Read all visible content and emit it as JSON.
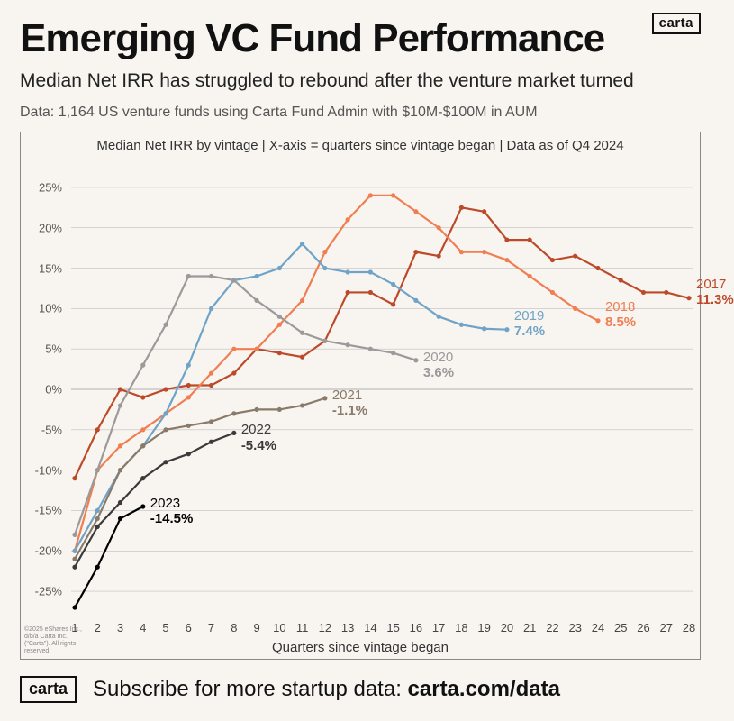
{
  "brand": "carta",
  "title": "Emerging VC Fund Performance",
  "subtitle": "Median Net IRR has struggled to rebound after the venture market turned",
  "data_note": "Data: 1,164 US venture funds using Carta Fund Admin with $10M-$100M in AUM",
  "chart": {
    "type": "line",
    "caption": "Median Net IRR by vintage  |  X-axis = quarters since vintage began  |  Data as of Q4 2024",
    "x_axis_title": "Quarters since vintage began",
    "background_color": "#f8f5f0",
    "grid_color": "#bfbfbf",
    "axis_color": "#888888",
    "tick_font_size": 13,
    "line_width": 2.2,
    "marker_radius": 2.6,
    "xlim": [
      1,
      28
    ],
    "ylim": [
      -28,
      28
    ],
    "xtick_step": 1,
    "yticks": [
      -25,
      -20,
      -15,
      -10,
      -5,
      0,
      5,
      10,
      15,
      20,
      25
    ],
    "ytick_labels": [
      "-25%",
      "-20%",
      "-15%",
      "-10%",
      "-5%",
      "0%",
      "5%",
      "10%",
      "15%",
      "20%",
      "25%"
    ],
    "series": [
      {
        "name": "2017",
        "color": "#bc4a2a",
        "label_year": "2017",
        "label_value": "11.3%",
        "label_dx": 8,
        "label_dy": -24,
        "x": [
          1,
          2,
          3,
          4,
          5,
          6,
          7,
          8,
          9,
          10,
          11,
          12,
          13,
          14,
          15,
          16,
          17,
          18,
          19,
          20,
          21,
          22,
          23,
          24,
          25,
          26,
          27,
          28
        ],
        "y": [
          -11,
          -5,
          0,
          -1,
          0,
          0.5,
          0.5,
          2,
          5,
          4.5,
          4,
          6,
          12,
          12,
          10.5,
          17,
          16.5,
          22.5,
          22,
          18.5,
          18.5,
          16,
          16.5,
          15,
          13.5,
          12,
          12,
          11.3
        ]
      },
      {
        "name": "2018",
        "color": "#f07e52",
        "label_year": "2018",
        "label_value": "8.5%",
        "label_dx": 8,
        "label_dy": -24,
        "x": [
          1,
          2,
          3,
          4,
          5,
          6,
          7,
          8,
          9,
          10,
          11,
          12,
          13,
          14,
          15,
          16,
          17,
          18,
          19,
          20,
          21,
          22,
          23,
          24
        ],
        "y": [
          -20,
          -10,
          -7,
          -5,
          -3,
          -1,
          2,
          5,
          5,
          8,
          11,
          17,
          21,
          24,
          24,
          22,
          20,
          17,
          17,
          16,
          14,
          12,
          10,
          8.5
        ]
      },
      {
        "name": "2019",
        "color": "#6fa3c7",
        "label_year": "2019",
        "label_value": "7.4%",
        "label_dx": 8,
        "label_dy": -24,
        "x": [
          1,
          2,
          3,
          4,
          5,
          6,
          7,
          8,
          9,
          10,
          11,
          12,
          13,
          14,
          15,
          16,
          17,
          18,
          19,
          20
        ],
        "y": [
          -20,
          -15,
          -10,
          -7,
          -3,
          3,
          10,
          13.5,
          14,
          15,
          18,
          15,
          14.5,
          14.5,
          13,
          11,
          9,
          8,
          7.5,
          7.4
        ]
      },
      {
        "name": "2020",
        "color": "#9a9a9a",
        "label_year": "2020",
        "label_value": "3.6%",
        "label_dx": 8,
        "label_dy": -12,
        "x": [
          1,
          2,
          3,
          4,
          5,
          6,
          7,
          8,
          9,
          10,
          11,
          12,
          13,
          14,
          15,
          16
        ],
        "y": [
          -18,
          -10,
          -2,
          3,
          8,
          14,
          14,
          13.5,
          11,
          9,
          7,
          6,
          5.5,
          5,
          4.5,
          3.6
        ]
      },
      {
        "name": "2021",
        "color": "#8a7a6a",
        "label_year": "2021",
        "label_value": "-1.1%",
        "label_dx": 8,
        "label_dy": -12,
        "x": [
          1,
          2,
          3,
          4,
          5,
          6,
          7,
          8,
          9,
          10,
          11,
          12
        ],
        "y": [
          -21,
          -16,
          -10,
          -7,
          -5,
          -4.5,
          -4,
          -3,
          -2.5,
          -2.5,
          -2,
          -1.1
        ]
      },
      {
        "name": "2022",
        "color": "#3a3a3a",
        "label_year": "2022",
        "label_value": "-5.4%",
        "label_dx": 8,
        "label_dy": -12,
        "x": [
          1,
          2,
          3,
          4,
          5,
          6,
          7,
          8
        ],
        "y": [
          -22,
          -17,
          -14,
          -11,
          -9,
          -8,
          -6.5,
          -5.4
        ]
      },
      {
        "name": "2023",
        "color": "#000000",
        "label_year": "2023",
        "label_value": "-14.5%",
        "label_dx": 8,
        "label_dy": -12,
        "x": [
          1,
          2,
          3,
          4
        ],
        "y": [
          -27,
          -22,
          -16,
          -14.5
        ]
      }
    ]
  },
  "copyright": "©2025 eShares Inc., d/b/a Carta Inc. (\"Carta\"). All rights reserved.",
  "footer": {
    "text": "Subscribe for more startup data: ",
    "url": "carta.com/data"
  }
}
